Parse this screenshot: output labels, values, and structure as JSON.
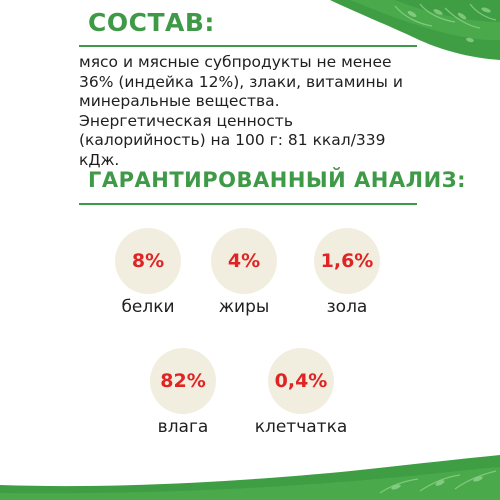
{
  "composition": {
    "title": "СОСТАВ:",
    "lines": [
      "мясо и мясные субпродукты не менее",
      "36% (индейка 12%), злаки, витамины и",
      "минеральные вещества.",
      "Энергетическая ценность",
      "(калорийность) на 100 г: 81 ккал/339 кДж."
    ]
  },
  "analysis": {
    "title": "ГАРАНТИРОВАННЫЙ АНАЛИЗ:",
    "items": [
      {
        "value": "8%",
        "label": "белки"
      },
      {
        "value": "4%",
        "label": "жиры"
      },
      {
        "value": "1,6%",
        "label": "зола"
      },
      {
        "value": "82%",
        "label": "влага"
      },
      {
        "value": "0,4%",
        "label": "клетчатка"
      }
    ]
  },
  "colors": {
    "accent_green": "#3e9a46",
    "value_red": "#e02424",
    "circle_fill": "#f1eee0",
    "text": "#1f1f1f"
  },
  "decor": {
    "top_right": "leaf-pattern",
    "bottom": "leaf-pattern"
  }
}
